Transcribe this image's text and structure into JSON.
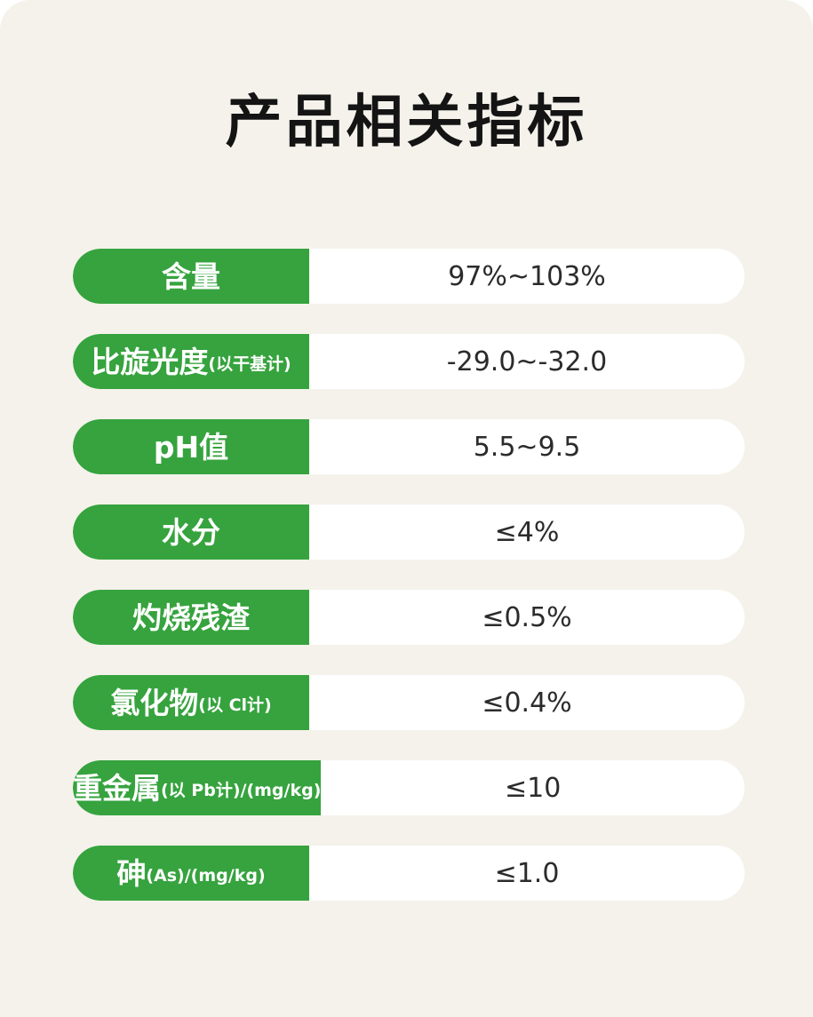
{
  "page": {
    "background_color": "#f4f2eb",
    "accent_green": "#36a33e"
  },
  "title": "产品相关指标",
  "table": {
    "rows": [
      {
        "label": "含量",
        "label_sub": "",
        "value": "97%~103%"
      },
      {
        "label": "比旋光度",
        "label_sub": "(以干基计)",
        "value": "-29.0~-32.0"
      },
      {
        "label": "pH值",
        "label_sub": "",
        "value": "5.5~9.5"
      },
      {
        "label": "水分",
        "label_sub": "",
        "value": "≤4%"
      },
      {
        "label": "灼烧残渣",
        "label_sub": "",
        "value": "≤0.5%"
      },
      {
        "label": "氯化物",
        "label_sub": "(以 Cl计)",
        "value": "≤0.4%"
      },
      {
        "label": "重金属",
        "label_sub": "(以 Pb计)/(mg/kg)",
        "value": "≤10"
      },
      {
        "label": "砷",
        "label_sub": "(As)/(mg/kg)",
        "value": "≤1.0"
      }
    ]
  }
}
